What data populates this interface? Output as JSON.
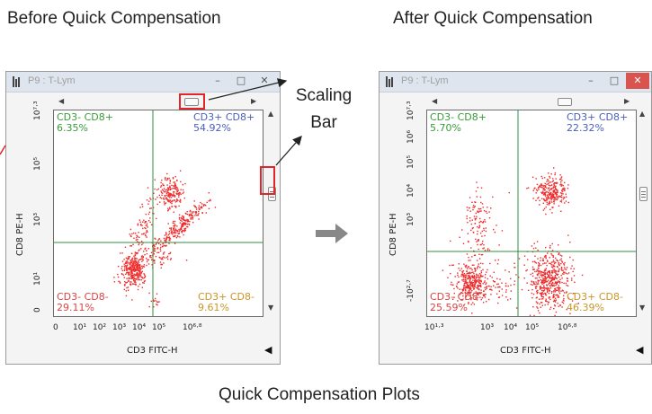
{
  "headings": {
    "before": "Before Quick Compensation",
    "after": "After Quick Compensation"
  },
  "caption": "Quick Compensation Plots",
  "callout": {
    "line1": "Scaling",
    "line2": "Bar"
  },
  "colors": {
    "accent_red": "#e0262b",
    "dots": "#ee2a2a",
    "gate": "#2f8f3f",
    "arrow": "#888888"
  },
  "icons": {
    "app": "plot-app-icon",
    "minimize": "minimize-icon",
    "maximize": "maximize-icon",
    "close": "close-icon",
    "flow_arrow": "right-arrow-icon"
  },
  "windows": [
    {
      "title": "P9 : T-Lym",
      "ylabel": "CD8 PE-H",
      "xlabel": "CD3 FITC-H",
      "xticks": [
        "0",
        "10¹",
        "10²",
        "10³",
        "10⁴",
        "10⁵",
        "10⁶·⁸"
      ],
      "yticks": [
        "10⁷·³",
        "10⁵",
        "10³",
        "10¹",
        "0"
      ],
      "quadrants": {
        "ul": {
          "name": "CD3- CD8+",
          "pct": "6.35%"
        },
        "ur": {
          "name": "CD3+ CD8+",
          "pct": "54.92%"
        },
        "ll": {
          "name": "CD3- CD8-",
          "pct": "29.11%"
        },
        "lr": {
          "name": "CD3+ CD8-",
          "pct": "9.61%"
        }
      }
    },
    {
      "title": "P9 : T-Lym",
      "ylabel": "CD8 PE-H",
      "xlabel": "CD3 FITC-H",
      "xticks": [
        "10¹·³",
        "10³",
        "10⁴",
        "10⁵",
        "10⁶·⁸"
      ],
      "yticks": [
        "10⁷·³",
        "10⁶",
        "10⁵",
        "10⁴",
        "10³",
        "-10²·⁷"
      ],
      "quadrants": {
        "ul": {
          "name": "CD3- CD8+",
          "pct": "5.70%"
        },
        "ur": {
          "name": "CD3+ CD8+",
          "pct": "22.32%"
        },
        "ll": {
          "name": "CD3- CD8-",
          "pct": "25.59%"
        },
        "lr": {
          "name": "CD3+ CD8-",
          "pct": "46.39%"
        }
      }
    }
  ]
}
